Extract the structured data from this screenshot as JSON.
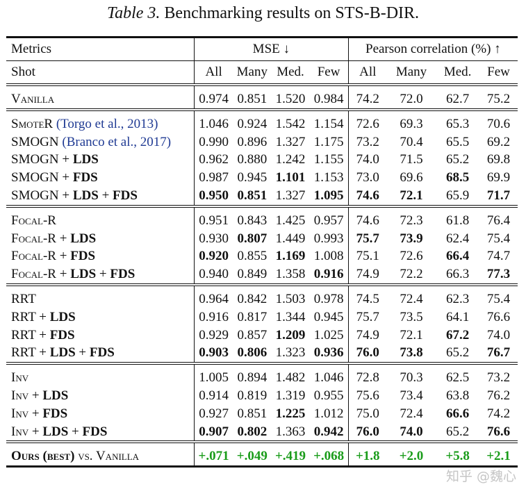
{
  "caption": {
    "label": "Table 3.",
    "text": "Benchmarking results on STS-B-DIR."
  },
  "header": {
    "metrics": "Metrics",
    "mse": "MSE ↓",
    "pearson": "Pearson correlation (%) ↑",
    "shot": "Shot",
    "cols": [
      "All",
      "Many",
      "Med.",
      "Few",
      "All",
      "Many",
      "Med.",
      "Few"
    ]
  },
  "groups": [
    {
      "rows": [
        {
          "name": [
            {
              "t": "Vanilla",
              "sc": true
            }
          ],
          "vals": [
            "0.974",
            "0.851",
            "1.520",
            "0.984",
            "74.2",
            "72.0",
            "62.7",
            "75.2"
          ],
          "bold": []
        }
      ]
    },
    {
      "rows": [
        {
          "name": [
            {
              "t": "SmoteR",
              "sc": true
            },
            {
              "t": " "
            },
            {
              "t": "(Torgo et al., 2013)",
              "cite": true
            }
          ],
          "vals": [
            "1.046",
            "0.924",
            "1.542",
            "1.154",
            "72.6",
            "69.3",
            "65.3",
            "70.6"
          ],
          "bold": []
        },
        {
          "name": [
            {
              "t": "SMOGN "
            },
            {
              "t": "(Branco et al., 2017)",
              "cite": true
            }
          ],
          "vals": [
            "0.990",
            "0.896",
            "1.327",
            "1.175",
            "73.2",
            "70.4",
            "65.5",
            "69.2"
          ],
          "bold": []
        },
        {
          "name": [
            {
              "t": "SMOGN + "
            },
            {
              "t": "LDS",
              "b": true
            }
          ],
          "vals": [
            "0.962",
            "0.880",
            "1.242",
            "1.155",
            "74.0",
            "71.5",
            "65.2",
            "69.8"
          ],
          "bold": []
        },
        {
          "name": [
            {
              "t": "SMOGN + "
            },
            {
              "t": "FDS",
              "b": true
            }
          ],
          "vals": [
            "0.987",
            "0.945",
            "1.101",
            "1.153",
            "73.0",
            "69.6",
            "68.5",
            "69.9"
          ],
          "bold": [
            2,
            6
          ]
        },
        {
          "name": [
            {
              "t": "SMOGN + "
            },
            {
              "t": "LDS",
              "b": true
            },
            {
              "t": " + "
            },
            {
              "t": "FDS",
              "b": true
            }
          ],
          "vals": [
            "0.950",
            "0.851",
            "1.327",
            "1.095",
            "74.6",
            "72.1",
            "65.9",
            "71.7"
          ],
          "bold": [
            0,
            1,
            3,
            4,
            5,
            7
          ]
        }
      ]
    },
    {
      "rows": [
        {
          "name": [
            {
              "t": "Focal-R",
              "sc": true
            }
          ],
          "vals": [
            "0.951",
            "0.843",
            "1.425",
            "0.957",
            "74.6",
            "72.3",
            "61.8",
            "76.4"
          ],
          "bold": []
        },
        {
          "name": [
            {
              "t": "Focal-R",
              "sc": true
            },
            {
              "t": " + "
            },
            {
              "t": "LDS",
              "b": true
            }
          ],
          "vals": [
            "0.930",
            "0.807",
            "1.449",
            "0.993",
            "75.7",
            "73.9",
            "62.4",
            "75.4"
          ],
          "bold": [
            1,
            4,
            5
          ]
        },
        {
          "name": [
            {
              "t": "Focal-R",
              "sc": true
            },
            {
              "t": " + "
            },
            {
              "t": "FDS",
              "b": true
            }
          ],
          "vals": [
            "0.920",
            "0.855",
            "1.169",
            "1.008",
            "75.1",
            "72.6",
            "66.4",
            "74.7"
          ],
          "bold": [
            0,
            2,
            6
          ]
        },
        {
          "name": [
            {
              "t": "Focal-R",
              "sc": true
            },
            {
              "t": " + "
            },
            {
              "t": "LDS",
              "b": true
            },
            {
              "t": " + "
            },
            {
              "t": "FDS",
              "b": true
            }
          ],
          "vals": [
            "0.940",
            "0.849",
            "1.358",
            "0.916",
            "74.9",
            "72.2",
            "66.3",
            "77.3"
          ],
          "bold": [
            3,
            7
          ]
        }
      ]
    },
    {
      "rows": [
        {
          "name": [
            {
              "t": "RRT"
            }
          ],
          "vals": [
            "0.964",
            "0.842",
            "1.503",
            "0.978",
            "74.5",
            "72.4",
            "62.3",
            "75.4"
          ],
          "bold": []
        },
        {
          "name": [
            {
              "t": "RRT + "
            },
            {
              "t": "LDS",
              "b": true
            }
          ],
          "vals": [
            "0.916",
            "0.817",
            "1.344",
            "0.945",
            "75.7",
            "73.5",
            "64.1",
            "76.6"
          ],
          "bold": []
        },
        {
          "name": [
            {
              "t": "RRT + "
            },
            {
              "t": "FDS",
              "b": true
            }
          ],
          "vals": [
            "0.929",
            "0.857",
            "1.209",
            "1.025",
            "74.9",
            "72.1",
            "67.2",
            "74.0"
          ],
          "bold": [
            2,
            6
          ]
        },
        {
          "name": [
            {
              "t": "RRT + "
            },
            {
              "t": "LDS",
              "b": true
            },
            {
              "t": " + "
            },
            {
              "t": "FDS",
              "b": true
            }
          ],
          "vals": [
            "0.903",
            "0.806",
            "1.323",
            "0.936",
            "76.0",
            "73.8",
            "65.2",
            "76.7"
          ],
          "bold": [
            0,
            1,
            3,
            4,
            5,
            7
          ]
        }
      ]
    },
    {
      "rows": [
        {
          "name": [
            {
              "t": "Inv",
              "sc": true
            }
          ],
          "vals": [
            "1.005",
            "0.894",
            "1.482",
            "1.046",
            "72.8",
            "70.3",
            "62.5",
            "73.2"
          ],
          "bold": []
        },
        {
          "name": [
            {
              "t": "Inv",
              "sc": true
            },
            {
              "t": " + "
            },
            {
              "t": "LDS",
              "b": true
            }
          ],
          "vals": [
            "0.914",
            "0.819",
            "1.319",
            "0.955",
            "75.6",
            "73.4",
            "63.8",
            "76.2"
          ],
          "bold": []
        },
        {
          "name": [
            {
              "t": "Inv",
              "sc": true
            },
            {
              "t": " + "
            },
            {
              "t": "FDS",
              "b": true
            }
          ],
          "vals": [
            "0.927",
            "0.851",
            "1.225",
            "1.012",
            "75.0",
            "72.4",
            "66.6",
            "74.2"
          ],
          "bold": [
            2,
            6
          ]
        },
        {
          "name": [
            {
              "t": "Inv",
              "sc": true
            },
            {
              "t": " + "
            },
            {
              "t": "LDS",
              "b": true
            },
            {
              "t": " + "
            },
            {
              "t": "FDS",
              "b": true
            }
          ],
          "vals": [
            "0.907",
            "0.802",
            "1.363",
            "0.942",
            "76.0",
            "74.0",
            "65.2",
            "76.6"
          ],
          "bold": [
            0,
            1,
            3,
            4,
            5,
            7
          ]
        }
      ]
    }
  ],
  "summary": {
    "name": [
      {
        "t": "Ours (best)",
        "sc": true,
        "b": true
      },
      {
        "t": " vs. Vanilla",
        "sc": true
      }
    ],
    "vals": [
      "+.071",
      "+.049",
      "+.419",
      "+.068",
      "+1.8",
      "+2.0",
      "+5.8",
      "+2.1"
    ]
  },
  "watermark": "知乎 @魏心"
}
